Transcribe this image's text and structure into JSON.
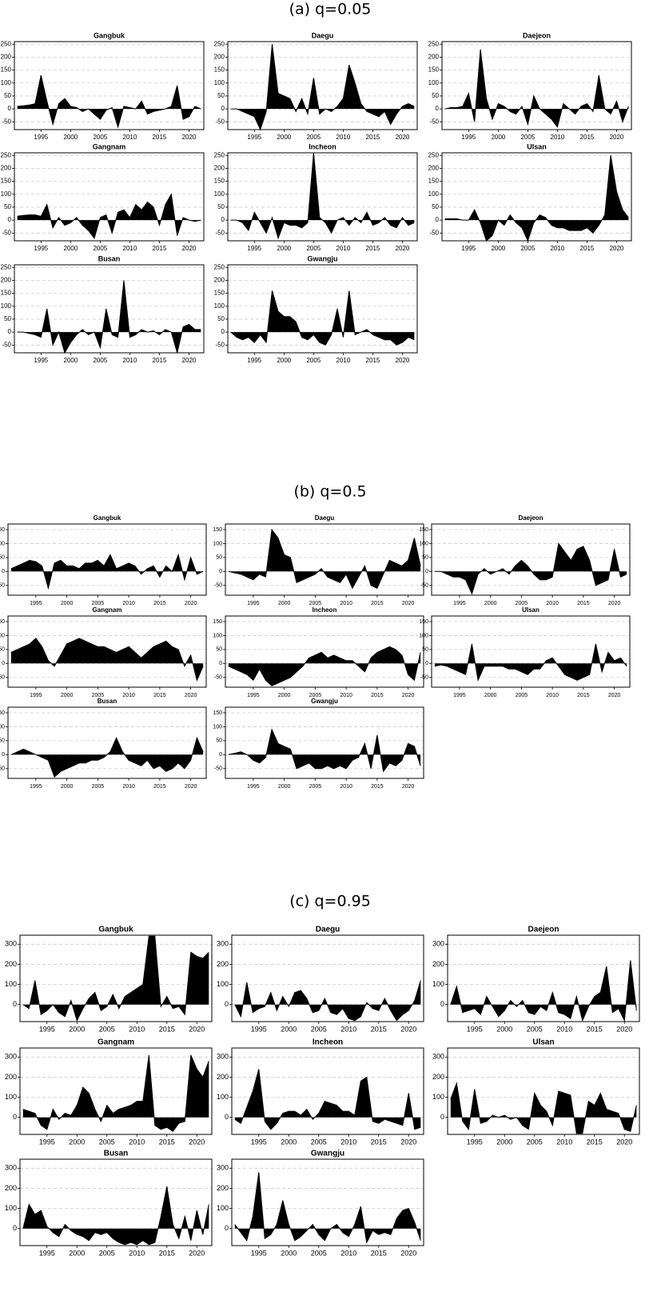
{
  "chart_data": [
    {
      "type": "area",
      "title": "(a) q=0.05",
      "grid": true,
      "color": "#000000",
      "x": [
        1991,
        1992,
        1993,
        1994,
        1995,
        1996,
        1997,
        1998,
        1999,
        2000,
        2001,
        2002,
        2003,
        2004,
        2005,
        2006,
        2007,
        2008,
        2009,
        2010,
        2011,
        2012,
        2013,
        2014,
        2015,
        2016,
        2017,
        2018,
        2019,
        2020,
        2021,
        2022
      ],
      "xlim": [
        1990.5,
        2022.5
      ],
      "xticks": [
        1995,
        2000,
        2005,
        2010,
        2015,
        2020
      ],
      "ylim": [
        -80,
        260
      ],
      "yticks": [
        -50,
        0,
        50,
        100,
        150,
        200,
        250
      ],
      "series": [
        {
          "name": "Gangbuk",
          "values": [
            10,
            12,
            15,
            20,
            130,
            30,
            -60,
            20,
            40,
            10,
            5,
            -10,
            0,
            -20,
            -40,
            -5,
            5,
            -70,
            10,
            5,
            0,
            30,
            -20,
            -10,
            -5,
            0,
            10,
            90,
            -40,
            -30,
            10,
            0
          ]
        },
        {
          "name": "Daegu",
          "values": [
            0,
            0,
            -10,
            -20,
            -30,
            -80,
            -10,
            250,
            60,
            50,
            40,
            -10,
            40,
            -20,
            120,
            -20,
            0,
            -10,
            10,
            40,
            170,
            100,
            20,
            -10,
            -20,
            -30,
            -10,
            -60,
            -20,
            10,
            20,
            10
          ]
        },
        {
          "name": "Daejeon",
          "values": [
            0,
            5,
            5,
            10,
            60,
            -50,
            230,
            40,
            -40,
            20,
            10,
            -10,
            -20,
            10,
            -60,
            50,
            0,
            -20,
            -40,
            -70,
            20,
            0,
            -20,
            10,
            20,
            -10,
            130,
            0,
            -20,
            30,
            -50,
            10
          ]
        },
        {
          "name": "Gangnam",
          "values": [
            15,
            18,
            20,
            20,
            15,
            60,
            -30,
            10,
            -20,
            -10,
            10,
            -20,
            -40,
            -70,
            10,
            20,
            -50,
            30,
            40,
            10,
            60,
            40,
            70,
            50,
            -20,
            60,
            100,
            -60,
            10,
            0,
            -5,
            0
          ]
        },
        {
          "name": "Incheon",
          "values": [
            0,
            0,
            -10,
            -40,
            30,
            -10,
            -50,
            10,
            -70,
            -10,
            -20,
            -20,
            -30,
            -10,
            260,
            10,
            -10,
            -50,
            0,
            10,
            -20,
            10,
            -10,
            30,
            -20,
            -10,
            10,
            -20,
            -30,
            10,
            -20,
            -10
          ]
        },
        {
          "name": "Ulsan",
          "values": [
            5,
            5,
            5,
            0,
            0,
            40,
            -10,
            -80,
            -60,
            0,
            -20,
            20,
            -10,
            -30,
            -80,
            -10,
            20,
            10,
            -20,
            -30,
            -30,
            -40,
            -40,
            -40,
            -30,
            -50,
            -20,
            20,
            250,
            110,
            40,
            10
          ]
        },
        {
          "name": "Busan",
          "values": [
            0,
            0,
            -5,
            -10,
            -20,
            90,
            -50,
            0,
            -80,
            -40,
            -10,
            10,
            -10,
            0,
            -60,
            90,
            -10,
            -20,
            200,
            -20,
            -10,
            10,
            0,
            5,
            -10,
            10,
            0,
            -80,
            20,
            30,
            10,
            10
          ]
        },
        {
          "name": "Gwangju",
          "values": [
            0,
            -20,
            -30,
            -20,
            -40,
            -10,
            -40,
            160,
            80,
            60,
            60,
            40,
            -20,
            -30,
            -10,
            -40,
            -50,
            -10,
            90,
            -20,
            160,
            -10,
            0,
            10,
            -10,
            -20,
            -30,
            -30,
            -50,
            -40,
            -20,
            -30
          ]
        }
      ]
    },
    {
      "type": "area",
      "title": "(b) q=0.5",
      "grid": true,
      "color": "#000000",
      "x": [
        1991,
        1992,
        1993,
        1994,
        1995,
        1996,
        1997,
        1998,
        1999,
        2000,
        2001,
        2002,
        2003,
        2004,
        2005,
        2006,
        2007,
        2008,
        2009,
        2010,
        2011,
        2012,
        2013,
        2014,
        2015,
        2016,
        2017,
        2018,
        2019,
        2020,
        2021,
        2022
      ],
      "xlim": [
        1990.5,
        2022.5
      ],
      "xticks": [
        1995,
        2000,
        2005,
        2010,
        2015,
        2020
      ],
      "ylim": [
        -85,
        170
      ],
      "yticks": [
        -50,
        0,
        50,
        100,
        150
      ],
      "series": [
        {
          "name": "Gangbuk",
          "values": [
            10,
            20,
            30,
            40,
            35,
            20,
            -60,
            30,
            40,
            20,
            20,
            10,
            30,
            30,
            40,
            20,
            60,
            10,
            20,
            30,
            20,
            -10,
            10,
            20,
            -20,
            20,
            0,
            60,
            -30,
            50,
            -10,
            0
          ]
        },
        {
          "name": "Daegu",
          "values": [
            0,
            -5,
            -10,
            -20,
            -30,
            -10,
            -20,
            150,
            120,
            60,
            50,
            -40,
            -30,
            -20,
            -10,
            10,
            -20,
            -30,
            -40,
            -10,
            -60,
            -20,
            20,
            -50,
            -60,
            -10,
            40,
            30,
            20,
            40,
            120,
            20
          ]
        },
        {
          "name": "Daejeon",
          "values": [
            0,
            0,
            -10,
            -20,
            -20,
            -30,
            -80,
            -10,
            10,
            -10,
            0,
            10,
            -10,
            20,
            40,
            20,
            -10,
            -30,
            -30,
            -20,
            100,
            70,
            40,
            80,
            90,
            40,
            -50,
            -40,
            -30,
            80,
            -20,
            -10
          ]
        },
        {
          "name": "Gangnam",
          "values": [
            40,
            50,
            60,
            70,
            90,
            60,
            10,
            -10,
            30,
            70,
            80,
            90,
            80,
            70,
            60,
            60,
            50,
            40,
            50,
            60,
            40,
            20,
            40,
            60,
            70,
            80,
            60,
            50,
            -10,
            30,
            -60,
            -10
          ]
        },
        {
          "name": "Incheon",
          "values": [
            -10,
            -20,
            -30,
            -40,
            -60,
            -20,
            -60,
            -80,
            -70,
            -60,
            -50,
            -30,
            -10,
            20,
            30,
            40,
            20,
            30,
            20,
            10,
            10,
            -10,
            -30,
            20,
            40,
            50,
            60,
            50,
            30,
            -40,
            -60,
            40
          ]
        },
        {
          "name": "Ulsan",
          "values": [
            -10,
            -5,
            -10,
            -20,
            -30,
            -40,
            70,
            -60,
            -10,
            -10,
            -10,
            -10,
            -20,
            -20,
            -30,
            -40,
            -20,
            -20,
            10,
            20,
            -10,
            -40,
            -50,
            -60,
            -50,
            -40,
            70,
            -30,
            40,
            10,
            20,
            -10
          ]
        },
        {
          "name": "Busan",
          "values": [
            0,
            10,
            20,
            10,
            0,
            -10,
            -20,
            -80,
            -60,
            -50,
            -40,
            -30,
            -30,
            -20,
            -20,
            -10,
            10,
            60,
            10,
            -20,
            -30,
            -40,
            -20,
            -50,
            -40,
            -60,
            -50,
            -30,
            -50,
            -20,
            60,
            10
          ]
        },
        {
          "name": "Gwangju",
          "values": [
            0,
            5,
            10,
            0,
            -20,
            -30,
            -10,
            90,
            40,
            30,
            20,
            -50,
            -40,
            -30,
            -50,
            -50,
            -40,
            -50,
            -40,
            -50,
            -20,
            -10,
            40,
            -50,
            70,
            -60,
            -30,
            -40,
            -20,
            40,
            30,
            -40
          ]
        }
      ]
    },
    {
      "type": "area",
      "title": "(c) q=0.95",
      "grid": true,
      "color": "#000000",
      "x": [
        1991,
        1992,
        1993,
        1994,
        1995,
        1996,
        1997,
        1998,
        1999,
        2000,
        2001,
        2002,
        2003,
        2004,
        2005,
        2006,
        2007,
        2008,
        2009,
        2010,
        2011,
        2012,
        2013,
        2014,
        2015,
        2016,
        2017,
        2018,
        2019,
        2020,
        2021,
        2022
      ],
      "xlim": [
        1990.5,
        2022.5
      ],
      "xticks": [
        1995,
        2000,
        2005,
        2010,
        2015,
        2020
      ],
      "ylim": [
        -85,
        345
      ],
      "yticks": [
        0,
        100,
        200,
        300
      ],
      "series": [
        {
          "name": "Gangbuk",
          "values": [
            0,
            -20,
            120,
            -50,
            -30,
            0,
            -40,
            -60,
            20,
            -80,
            -20,
            30,
            60,
            -30,
            -10,
            50,
            -20,
            40,
            60,
            80,
            100,
            340,
            340,
            -10,
            40,
            -20,
            -10,
            -50,
            260,
            240,
            230,
            260
          ]
        },
        {
          "name": "Daegu",
          "values": [
            0,
            -60,
            110,
            -40,
            -20,
            -10,
            60,
            -30,
            40,
            -10,
            60,
            70,
            30,
            -40,
            -30,
            30,
            -40,
            -50,
            -20,
            -70,
            -80,
            -60,
            10,
            -20,
            -30,
            30,
            -30,
            -80,
            -50,
            -30,
            20,
            120
          ]
        },
        {
          "name": "Daejeon",
          "values": [
            0,
            90,
            -40,
            -30,
            -20,
            -50,
            40,
            -10,
            -60,
            -30,
            20,
            -10,
            20,
            -40,
            -50,
            -10,
            -30,
            60,
            -40,
            -50,
            -70,
            40,
            -80,
            -10,
            40,
            60,
            190,
            -40,
            -20,
            -80,
            220,
            -30
          ]
        },
        {
          "name": "Gangnam",
          "values": [
            40,
            30,
            20,
            -40,
            -60,
            40,
            -10,
            20,
            10,
            60,
            150,
            120,
            40,
            -20,
            60,
            20,
            40,
            50,
            60,
            80,
            80,
            310,
            -40,
            -60,
            -50,
            -70,
            -30,
            -20,
            310,
            240,
            200,
            280
          ]
        },
        {
          "name": "Incheon",
          "values": [
            -10,
            -30,
            50,
            130,
            240,
            -20,
            -60,
            -30,
            20,
            30,
            30,
            10,
            40,
            -10,
            20,
            80,
            70,
            60,
            30,
            30,
            10,
            180,
            200,
            -20,
            -30,
            -10,
            -20,
            -30,
            -40,
            120,
            -60,
            -50
          ]
        },
        {
          "name": "Ulsan",
          "values": [
            90,
            170,
            -20,
            -60,
            140,
            -30,
            -20,
            10,
            0,
            10,
            -10,
            0,
            -40,
            -60,
            120,
            60,
            30,
            -40,
            130,
            120,
            110,
            -80,
            -80,
            80,
            60,
            120,
            40,
            30,
            20,
            -60,
            -70,
            60
          ]
        },
        {
          "name": "Busan",
          "values": [
            0,
            120,
            70,
            90,
            10,
            -20,
            -40,
            20,
            -10,
            -30,
            -40,
            -60,
            -20,
            -30,
            -20,
            -50,
            -70,
            -80,
            -70,
            -80,
            -60,
            -80,
            -70,
            60,
            210,
            20,
            -50,
            60,
            -60,
            90,
            -30,
            120
          ]
        },
        {
          "name": "Gwangju",
          "values": [
            20,
            -20,
            -60,
            60,
            280,
            -50,
            -30,
            20,
            140,
            20,
            -60,
            -40,
            -10,
            20,
            -30,
            -60,
            0,
            20,
            -20,
            -40,
            20,
            110,
            -70,
            -10,
            -30,
            -20,
            -30,
            50,
            90,
            100,
            30,
            -60
          ]
        }
      ]
    }
  ]
}
